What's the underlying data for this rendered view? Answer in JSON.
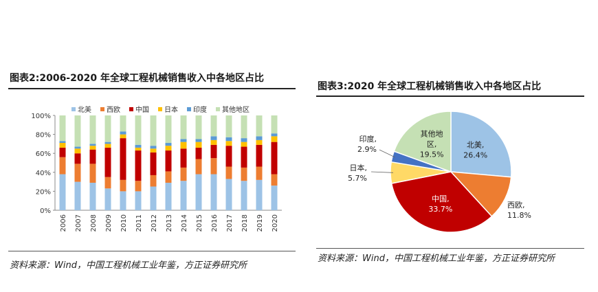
{
  "figures": [
    {
      "title": "图表2:2006-2020 年全球工程机械销售收入中各地区占比",
      "source": "资料来源：Wind，中国工程机械工业年鉴，方正证券研究所"
    },
    {
      "title": "图表3:2020 年全球工程机械销售收入中各地区占比",
      "source": "资料来源：Wind，中国工程机械工业年鉴，方正证券研究所"
    }
  ],
  "chart_data": [
    {
      "type": "bar",
      "stacked": true,
      "percent": true,
      "categories": [
        "2006",
        "2007",
        "2008",
        "2009",
        "2010",
        "2011",
        "2012",
        "2013",
        "2014",
        "2015",
        "2016",
        "2017",
        "2018",
        "2019",
        "2020"
      ],
      "ylim": [
        0,
        100
      ],
      "yticks": [
        "0%",
        "20%",
        "40%",
        "60%",
        "80%",
        "100%"
      ],
      "legend_position": "top",
      "grid": false,
      "series": [
        {
          "name": "北美",
          "color": "#9dc3e6",
          "values": [
            38,
            30,
            29,
            23,
            20,
            20,
            25,
            29,
            31,
            38,
            38,
            33,
            31,
            32,
            26
          ]
        },
        {
          "name": "西欧",
          "color": "#ed7d31",
          "values": [
            18,
            19,
            20,
            12,
            12,
            11,
            12,
            12,
            14,
            16,
            17,
            13,
            14,
            14,
            12
          ]
        },
        {
          "name": "中国",
          "color": "#c00000",
          "values": [
            10,
            11,
            15,
            31,
            44,
            32,
            24,
            22,
            20,
            12,
            14,
            22,
            22,
            23,
            34
          ]
        },
        {
          "name": "日本",
          "color": "#ffc000",
          "values": [
            5,
            5,
            4,
            4,
            4,
            3,
            4,
            5,
            7,
            6,
            5,
            5,
            5,
            5,
            6
          ]
        },
        {
          "name": "印度",
          "color": "#5b9bd5",
          "values": [
            2,
            2,
            2,
            2,
            3,
            3,
            3,
            3,
            3,
            3,
            4,
            4,
            4,
            4,
            3
          ]
        },
        {
          "name": "其他地区",
          "color": "#c5e0b4",
          "values": [
            27,
            33,
            30,
            28,
            17,
            31,
            32,
            29,
            25,
            25,
            22,
            23,
            24,
            22,
            19
          ]
        }
      ]
    },
    {
      "type": "pie",
      "slices": [
        {
          "name": "北美",
          "value": 26.4,
          "label": "北美,",
          "pct": "26.4%",
          "color": "#9dc3e6"
        },
        {
          "name": "西欧",
          "value": 11.8,
          "label": "西欧,",
          "pct": "11.8%",
          "color": "#ed7d31"
        },
        {
          "name": "中国",
          "value": 33.7,
          "label": "中国,",
          "pct": "33.7%",
          "color": "#c00000"
        },
        {
          "name": "日本",
          "value": 5.7,
          "label": "日本,",
          "pct": "5.7%",
          "color": "#ffd966"
        },
        {
          "name": "印度",
          "value": 2.9,
          "label": "印度,",
          "pct": "2.9%",
          "color": "#4472c4"
        },
        {
          "name": "其他地区",
          "value": 19.5,
          "label": "其他地区,",
          "pct": "19.5%",
          "color": "#c5e0b4"
        }
      ]
    }
  ]
}
